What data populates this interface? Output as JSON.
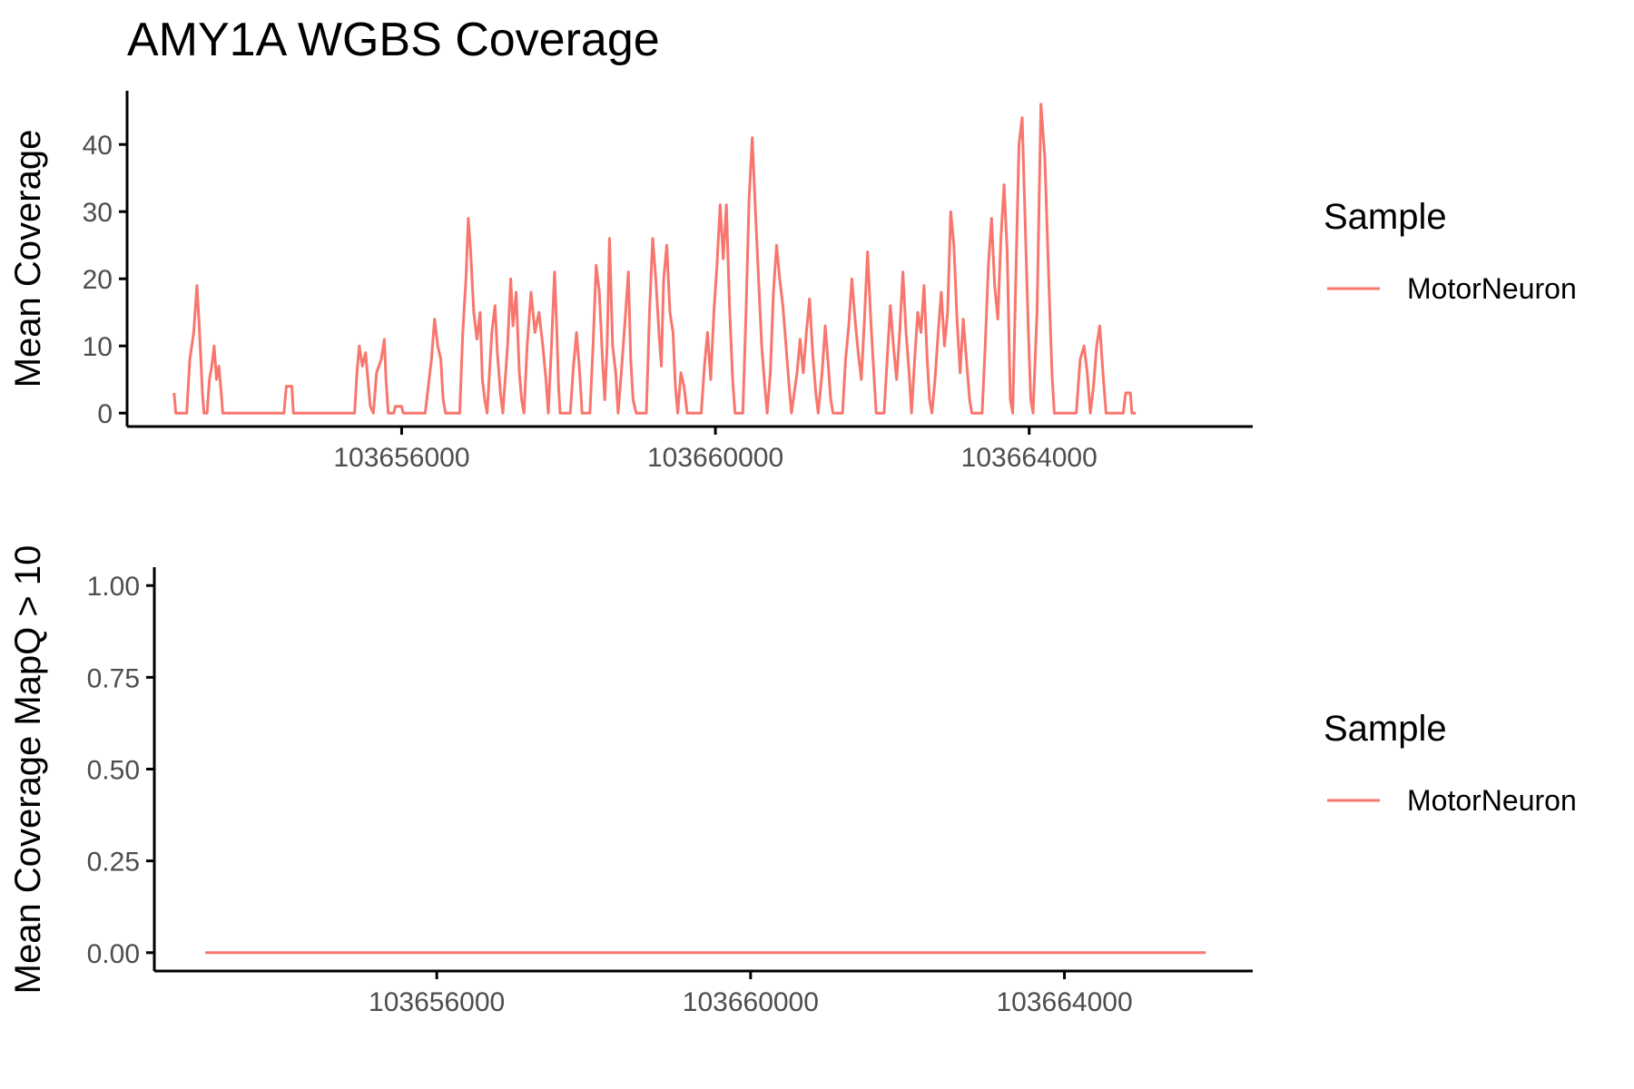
{
  "title": "AMY1A WGBS Coverage",
  "colors": {
    "series": "#F8766D",
    "axis": "#000000",
    "tick_text": "#4d4d4d"
  },
  "chart_data": [
    {
      "type": "line",
      "ylabel": "Mean Coverage",
      "xlabel": "",
      "xlim": [
        103652500,
        103666850
      ],
      "ylim": [
        -2,
        48
      ],
      "x_ticks": [
        103656000,
        103660000,
        103664000
      ],
      "x_tick_labels": [
        "103656000",
        "103660000",
        "103664000"
      ],
      "y_ticks": [
        0,
        10,
        20,
        30,
        40
      ],
      "y_tick_labels": [
        "0",
        "10",
        "20",
        "30",
        "40"
      ],
      "legend": {
        "title": "Sample",
        "entries": [
          "MotorNeuron"
        ],
        "position": "right"
      },
      "series": [
        {
          "name": "MotorNeuron",
          "points": [
            [
              103653100,
              3
            ],
            [
              103653120,
              0
            ],
            [
              103653260,
              0
            ],
            [
              103653300,
              8
            ],
            [
              103653350,
              12
            ],
            [
              103653390,
              19
            ],
            [
              103653420,
              13
            ],
            [
              103653460,
              3
            ],
            [
              103653480,
              0
            ],
            [
              103653520,
              0
            ],
            [
              103653550,
              5
            ],
            [
              103653580,
              7
            ],
            [
              103653610,
              10
            ],
            [
              103653640,
              5
            ],
            [
              103653670,
              7
            ],
            [
              103653700,
              3
            ],
            [
              103653720,
              0
            ],
            [
              103654500,
              0
            ],
            [
              103654530,
              4
            ],
            [
              103654600,
              4
            ],
            [
              103654620,
              0
            ],
            [
              103655400,
              0
            ],
            [
              103655430,
              6
            ],
            [
              103655460,
              10
            ],
            [
              103655500,
              7
            ],
            [
              103655540,
              9
            ],
            [
              103655570,
              5
            ],
            [
              103655600,
              1
            ],
            [
              103655640,
              0
            ],
            [
              103655680,
              6
            ],
            [
              103655740,
              8
            ],
            [
              103655780,
              11
            ],
            [
              103655800,
              5
            ],
            [
              103655830,
              0
            ],
            [
              103655900,
              0
            ],
            [
              103655920,
              1
            ],
            [
              103656000,
              1
            ],
            [
              103656020,
              0
            ],
            [
              103656300,
              0
            ],
            [
              103656380,
              8
            ],
            [
              103656420,
              14
            ],
            [
              103656460,
              10
            ],
            [
              103656500,
              8
            ],
            [
              103656530,
              2
            ],
            [
              103656560,
              0
            ],
            [
              103656740,
              0
            ],
            [
              103656780,
              12
            ],
            [
              103656820,
              20
            ],
            [
              103656850,
              29
            ],
            [
              103656880,
              24
            ],
            [
              103656920,
              15
            ],
            [
              103656960,
              11
            ],
            [
              103657000,
              15
            ],
            [
              103657030,
              5
            ],
            [
              103657060,
              2
            ],
            [
              103657090,
              0
            ],
            [
              103657150,
              12
            ],
            [
              103657190,
              16
            ],
            [
              103657220,
              9
            ],
            [
              103657260,
              3
            ],
            [
              103657290,
              0
            ],
            [
              103657350,
              10
            ],
            [
              103657390,
              20
            ],
            [
              103657420,
              13
            ],
            [
              103657460,
              18
            ],
            [
              103657500,
              6
            ],
            [
              103657530,
              2
            ],
            [
              103657560,
              0
            ],
            [
              103657600,
              10
            ],
            [
              103657650,
              18
            ],
            [
              103657700,
              12
            ],
            [
              103657750,
              15
            ],
            [
              103657800,
              10
            ],
            [
              103657840,
              5
            ],
            [
              103657870,
              0
            ],
            [
              103657910,
              10
            ],
            [
              103657950,
              21
            ],
            [
              103657980,
              12
            ],
            [
              103658000,
              4
            ],
            [
              103658020,
              0
            ],
            [
              103658150,
              0
            ],
            [
              103658190,
              7
            ],
            [
              103658230,
              12
            ],
            [
              103658270,
              6
            ],
            [
              103658300,
              0
            ],
            [
              103658400,
              0
            ],
            [
              103658440,
              10
            ],
            [
              103658480,
              22
            ],
            [
              103658520,
              18
            ],
            [
              103658560,
              8
            ],
            [
              103658590,
              2
            ],
            [
              103658620,
              10
            ],
            [
              103658650,
              26
            ],
            [
              103658690,
              10
            ],
            [
              103658730,
              6
            ],
            [
              103658760,
              0
            ],
            [
              103658800,
              6
            ],
            [
              103658850,
              14
            ],
            [
              103658890,
              21
            ],
            [
              103658920,
              8
            ],
            [
              103658950,
              2
            ],
            [
              103658990,
              0
            ],
            [
              103659120,
              0
            ],
            [
              103659160,
              15
            ],
            [
              103659200,
              26
            ],
            [
              103659240,
              20
            ],
            [
              103659280,
              12
            ],
            [
              103659310,
              7
            ],
            [
              103659340,
              20
            ],
            [
              103659380,
              25
            ],
            [
              103659420,
              15
            ],
            [
              103659460,
              12
            ],
            [
              103659490,
              4
            ],
            [
              103659520,
              0
            ],
            [
              103659560,
              6
            ],
            [
              103659600,
              4
            ],
            [
              103659640,
              0
            ],
            [
              103659820,
              0
            ],
            [
              103659860,
              7
            ],
            [
              103659900,
              12
            ],
            [
              103659940,
              5
            ],
            [
              103659980,
              15
            ],
            [
              103660020,
              22
            ],
            [
              103660060,
              31
            ],
            [
              103660100,
              23
            ],
            [
              103660140,
              31
            ],
            [
              103660180,
              16
            ],
            [
              103660220,
              5
            ],
            [
              103660250,
              0
            ],
            [
              103660350,
              0
            ],
            [
              103660390,
              15
            ],
            [
              103660430,
              32
            ],
            [
              103660470,
              41
            ],
            [
              103660510,
              30
            ],
            [
              103660550,
              20
            ],
            [
              103660590,
              10
            ],
            [
              103660630,
              4
            ],
            [
              103660660,
              0
            ],
            [
              103660700,
              6
            ],
            [
              103660740,
              18
            ],
            [
              103660780,
              25
            ],
            [
              103660820,
              20
            ],
            [
              103660860,
              16
            ],
            [
              103660900,
              10
            ],
            [
              103660940,
              4
            ],
            [
              103660970,
              0
            ],
            [
              103661040,
              6
            ],
            [
              103661080,
              11
            ],
            [
              103661120,
              6
            ],
            [
              103661160,
              12
            ],
            [
              103661200,
              17
            ],
            [
              103661240,
              9
            ],
            [
              103661280,
              3
            ],
            [
              103661310,
              0
            ],
            [
              103661360,
              6
            ],
            [
              103661400,
              13
            ],
            [
              103661440,
              7
            ],
            [
              103661470,
              2
            ],
            [
              103661500,
              0
            ],
            [
              103661620,
              0
            ],
            [
              103661660,
              8
            ],
            [
              103661700,
              13
            ],
            [
              103661740,
              20
            ],
            [
              103661780,
              14
            ],
            [
              103661820,
              9
            ],
            [
              103661860,
              5
            ],
            [
              103661900,
              14
            ],
            [
              103661940,
              24
            ],
            [
              103661980,
              14
            ],
            [
              103662020,
              6
            ],
            [
              103662050,
              0
            ],
            [
              103662150,
              0
            ],
            [
              103662190,
              8
            ],
            [
              103662230,
              16
            ],
            [
              103662270,
              10
            ],
            [
              103662310,
              5
            ],
            [
              103662350,
              12
            ],
            [
              103662390,
              21
            ],
            [
              103662430,
              12
            ],
            [
              103662470,
              6
            ],
            [
              103662500,
              0
            ],
            [
              103662540,
              8
            ],
            [
              103662580,
              15
            ],
            [
              103662620,
              12
            ],
            [
              103662660,
              19
            ],
            [
              103662700,
              8
            ],
            [
              103662730,
              2
            ],
            [
              103662760,
              0
            ],
            [
              103662800,
              5
            ],
            [
              103662840,
              12
            ],
            [
              103662880,
              18
            ],
            [
              103662920,
              10
            ],
            [
              103662960,
              15
            ],
            [
              103663000,
              30
            ],
            [
              103663040,
              25
            ],
            [
              103663080,
              14
            ],
            [
              103663120,
              6
            ],
            [
              103663160,
              14
            ],
            [
              103663200,
              8
            ],
            [
              103663240,
              2
            ],
            [
              103663270,
              0
            ],
            [
              103663400,
              0
            ],
            [
              103663440,
              10
            ],
            [
              103663480,
              22
            ],
            [
              103663520,
              29
            ],
            [
              103663560,
              19
            ],
            [
              103663600,
              14
            ],
            [
              103663640,
              26
            ],
            [
              103663680,
              34
            ],
            [
              103663720,
              24
            ],
            [
              103663760,
              2
            ],
            [
              103663790,
              0
            ],
            [
              103663830,
              20
            ],
            [
              103663870,
              40
            ],
            [
              103663910,
              44
            ],
            [
              103663950,
              28
            ],
            [
              103663990,
              12
            ],
            [
              103664020,
              2
            ],
            [
              103664050,
              0
            ],
            [
              103664100,
              15
            ],
            [
              103664150,
              46
            ],
            [
              103664200,
              38
            ],
            [
              103664250,
              20
            ],
            [
              103664290,
              6
            ],
            [
              103664320,
              0
            ],
            [
              103664600,
              0
            ],
            [
              103664650,
              8
            ],
            [
              103664700,
              10
            ],
            [
              103664740,
              6
            ],
            [
              103664780,
              0
            ],
            [
              103664820,
              4
            ],
            [
              103664860,
              10
            ],
            [
              103664900,
              13
            ],
            [
              103664940,
              6
            ],
            [
              103664980,
              0
            ],
            [
              103665200,
              0
            ],
            [
              103665230,
              3
            ],
            [
              103665290,
              3
            ],
            [
              103665310,
              0
            ],
            [
              103665360,
              0
            ]
          ]
        }
      ]
    },
    {
      "type": "line",
      "ylabel": "Mean Coverage MapQ > 10",
      "xlabel": "",
      "xlim": [
        103652400,
        103666400
      ],
      "ylim": [
        -0.05,
        1.05
      ],
      "x_ticks": [
        103656000,
        103660000,
        103664000
      ],
      "x_tick_labels": [
        "103656000",
        "103660000",
        "103664000"
      ],
      "y_ticks": [
        0,
        0.25,
        0.5,
        0.75,
        1
      ],
      "y_tick_labels": [
        "0.00",
        "0.25",
        "0.50",
        "0.75",
        "1.00"
      ],
      "legend": {
        "title": "Sample",
        "entries": [
          "MotorNeuron"
        ],
        "position": "right"
      },
      "series": [
        {
          "name": "MotorNeuron",
          "points": [
            [
              103653050,
              0
            ],
            [
              103665800,
              0
            ]
          ]
        }
      ]
    }
  ]
}
